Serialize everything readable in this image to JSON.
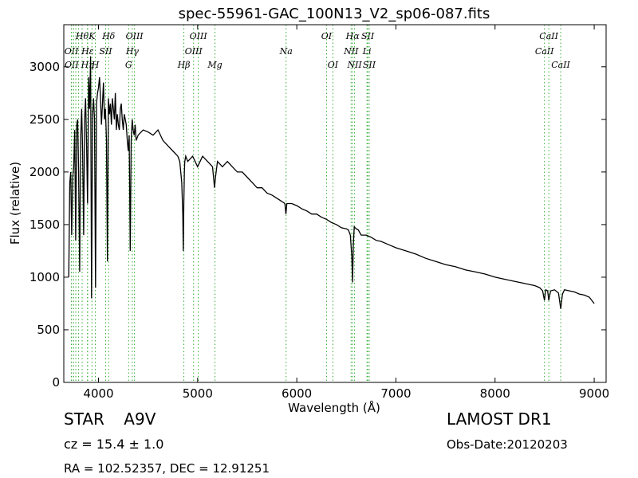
{
  "chart_data": {
    "type": "line",
    "title": "spec-55961-GAC_100N13_V2_sp06-087.fits",
    "xlabel": "Wavelength (Å)",
    "ylabel": "Flux (relative)",
    "xlim": [
      3650,
      9120
    ],
    "ylim": [
      0,
      3400
    ],
    "xticks": [
      4000,
      5000,
      6000,
      7000,
      8000,
      9000
    ],
    "yticks": [
      0,
      500,
      1000,
      1500,
      2000,
      2500,
      3000
    ],
    "grid": false,
    "line_color": "#000000",
    "marker_color": "#33aa33",
    "series": [
      {
        "x": [
          3700,
          3710,
          3720,
          3730,
          3740,
          3750,
          3760,
          3770,
          3780,
          3790,
          3800,
          3810,
          3820,
          3830,
          3840,
          3850,
          3860,
          3870,
          3880,
          3890,
          3900,
          3910,
          3920,
          3930,
          3940,
          3950,
          3960,
          3970,
          3980,
          3990,
          4000,
          4010,
          4020,
          4030,
          4040,
          4050,
          4060,
          4070,
          4080,
          4090,
          4100,
          4110,
          4120,
          4130,
          4140,
          4150,
          4160,
          4170,
          4180,
          4190,
          4200,
          4210,
          4220,
          4230,
          4240,
          4250,
          4260,
          4270,
          4280,
          4290,
          4300,
          4310,
          4320,
          4330,
          4340,
          4350,
          4360,
          4370,
          4380,
          4400,
          4450,
          4500,
          4550,
          4600,
          4650,
          4700,
          4750,
          4800,
          4820,
          4840,
          4850,
          4855,
          4861,
          4866,
          4870,
          4880,
          4900,
          4950,
          5000,
          5050,
          5100,
          5150,
          5170,
          5180,
          5200,
          5250,
          5300,
          5350,
          5400,
          5450,
          5500,
          5550,
          5600,
          5650,
          5700,
          5750,
          5800,
          5850,
          5880,
          5890,
          5895,
          5900,
          5950,
          6000,
          6050,
          6100,
          6150,
          6200,
          6250,
          6300,
          6350,
          6400,
          6450,
          6500,
          6520,
          6540,
          6555,
          6563,
          6570,
          6580,
          6600,
          6620,
          6650,
          6700,
          6750,
          6800,
          6850,
          6900,
          6950,
          7000,
          7100,
          7200,
          7300,
          7400,
          7500,
          7600,
          7700,
          7800,
          7900,
          8000,
          8100,
          8200,
          8300,
          8400,
          8450,
          8480,
          8498,
          8510,
          8530,
          8542,
          8560,
          8600,
          8640,
          8662,
          8680,
          8700,
          8750,
          8800,
          8850,
          8900,
          8950,
          9000
        ],
        "y": [
          1000,
          1900,
          2000,
          1400,
          1950,
          2050,
          2400,
          1350,
          2450,
          2500,
          2000,
          1050,
          2300,
          2600,
          2200,
          1400,
          2500,
          2700,
          2250,
          1700,
          2900,
          2600,
          3100,
          800,
          2550,
          2700,
          2500,
          900,
          2650,
          2750,
          2800,
          2900,
          2700,
          2450,
          2650,
          2850,
          2500,
          2600,
          2300,
          1150,
          2700,
          2550,
          2650,
          2450,
          2700,
          2600,
          2500,
          2750,
          2400,
          2550,
          2450,
          2400,
          2600,
          2650,
          2500,
          2400,
          2550,
          2500,
          2450,
          2300,
          2200,
          2350,
          1250,
          2300,
          2500,
          2400,
          2350,
          2450,
          2300,
          2350,
          2400,
          2380,
          2350,
          2400,
          2300,
          2250,
          2200,
          2150,
          2100,
          1900,
          1600,
          1250,
          1700,
          2000,
          2100,
          2150,
          2100,
          2150,
          2050,
          2150,
          2100,
          2050,
          1850,
          1950,
          2100,
          2050,
          2100,
          2050,
          2000,
          2000,
          1950,
          1900,
          1850,
          1850,
          1800,
          1780,
          1750,
          1720,
          1700,
          1600,
          1650,
          1700,
          1700,
          1680,
          1650,
          1630,
          1600,
          1600,
          1570,
          1550,
          1520,
          1500,
          1470,
          1460,
          1450,
          1400,
          1200,
          950,
          1300,
          1480,
          1460,
          1450,
          1400,
          1400,
          1380,
          1350,
          1340,
          1320,
          1300,
          1280,
          1250,
          1220,
          1180,
          1150,
          1120,
          1100,
          1070,
          1050,
          1030,
          1000,
          980,
          960,
          940,
          920,
          900,
          870,
          780,
          880,
          870,
          780,
          870,
          880,
          850,
          700,
          840,
          880,
          870,
          860,
          840,
          830,
          810,
          750
        ]
      }
    ],
    "lines": [
      {
        "wl": 3727,
        "label": "OII",
        "row": 1
      },
      {
        "wl": 3729,
        "label": "OII",
        "row": 2
      },
      {
        "wl": 3750,
        "label": "",
        "row": 0
      },
      {
        "wl": 3771,
        "label": "",
        "row": 0
      },
      {
        "wl": 3798,
        "label": "",
        "row": 0
      },
      {
        "wl": 3835,
        "label": "Hθ",
        "row": 0
      },
      {
        "wl": 3889,
        "label": "Hη",
        "row": 2
      },
      {
        "wl": 3934,
        "label": "K",
        "row": 0
      },
      {
        "wl": 3890,
        "label": "Hε",
        "row": 1
      },
      {
        "wl": 3968,
        "label": "H",
        "row": 2
      },
      {
        "wl": 4072,
        "label": "SII",
        "row": 1
      },
      {
        "wl": 4102,
        "label": "Hδ",
        "row": 0
      },
      {
        "wl": 4304,
        "label": "G",
        "row": 2
      },
      {
        "wl": 4341,
        "label": "Hγ",
        "row": 1
      },
      {
        "wl": 4363,
        "label": "OIII",
        "row": 0
      },
      {
        "wl": 4861,
        "label": "Hβ",
        "row": 2
      },
      {
        "wl": 4959,
        "label": "OIII",
        "row": 1
      },
      {
        "wl": 5007,
        "label": "OIII",
        "row": 0
      },
      {
        "wl": 5175,
        "label": "Mg",
        "row": 2
      },
      {
        "wl": 5892,
        "label": "Na",
        "row": 1
      },
      {
        "wl": 6300,
        "label": "OI",
        "row": 0
      },
      {
        "wl": 6364,
        "label": "OI",
        "row": 2
      },
      {
        "wl": 6548,
        "label": "NII",
        "row": 1
      },
      {
        "wl": 6563,
        "label": "Hα",
        "row": 0
      },
      {
        "wl": 6583,
        "label": "NII",
        "row": 2
      },
      {
        "wl": 6708,
        "label": "Li",
        "row": 1
      },
      {
        "wl": 6716,
        "label": "SII",
        "row": 0
      },
      {
        "wl": 6731,
        "label": "SII",
        "row": 2
      },
      {
        "wl": 8498,
        "label": "CaII",
        "row": 1
      },
      {
        "wl": 8542,
        "label": "CaII",
        "row": 0
      },
      {
        "wl": 8662,
        "label": "CaII",
        "row": 2
      }
    ]
  },
  "info": {
    "class": "STAR",
    "subclass": "A9V",
    "cz": "cz = 15.4 ± 1.0",
    "coords": "RA = 102.52357, DEC = 12.91251",
    "survey": "LAMOST DR1",
    "obsdate": "Obs-Date:20120203"
  }
}
